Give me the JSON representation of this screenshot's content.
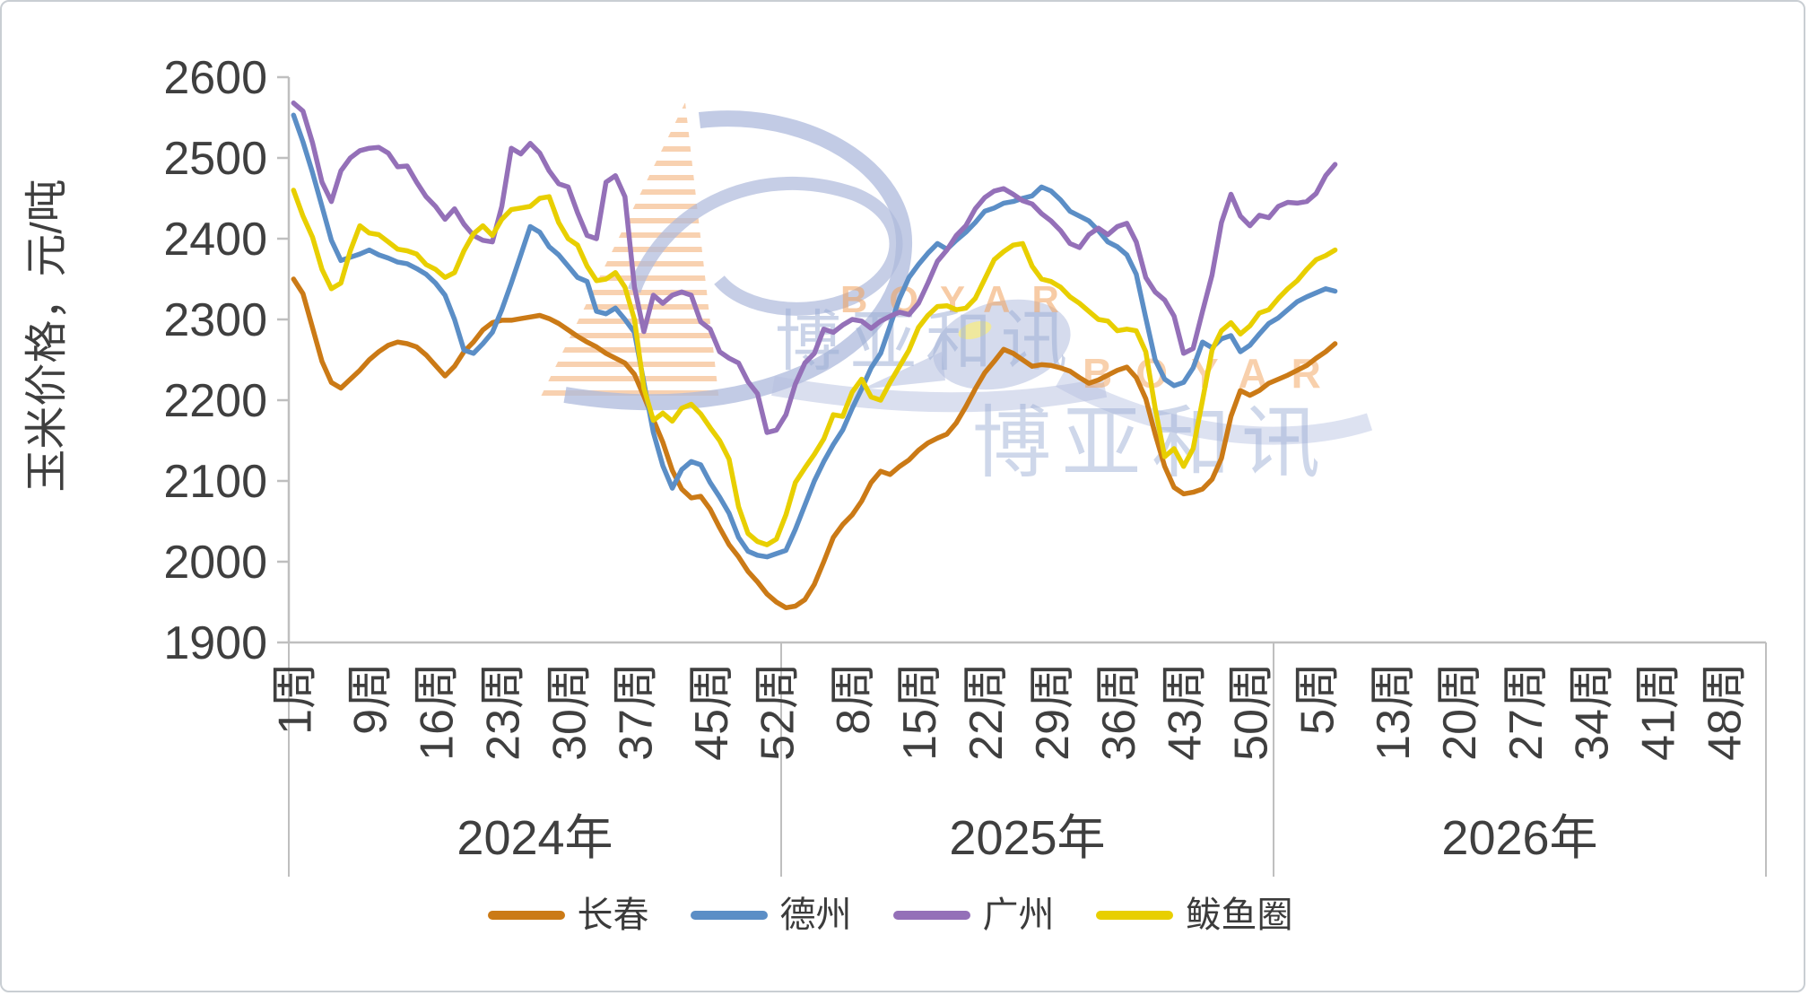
{
  "watermark": {
    "cn": "博亚和讯",
    "en": "BOYAR"
  },
  "chart_data": {
    "type": "line",
    "title": "",
    "ylabel": "玉米价格，元/吨",
    "xlabel": "",
    "ylim": [
      1900,
      2600
    ],
    "yticks": [
      2600,
      2500,
      2400,
      2300,
      2200,
      2100,
      2000,
      1900
    ],
    "grid": "off",
    "legend_position": "bottom",
    "week_suffix": "周",
    "year_groups": [
      {
        "label": "2024年",
        "weeks": 52,
        "tick_weeks": [
          1,
          9,
          16,
          23,
          30,
          37,
          45,
          52
        ]
      },
      {
        "label": "2025年",
        "weeks": 52,
        "tick_weeks": [
          8,
          15,
          22,
          29,
          36,
          43,
          50
        ]
      },
      {
        "label": "2026年",
        "weeks": 52,
        "tick_weeks": [
          5,
          13,
          20,
          27,
          34,
          41,
          48
        ]
      }
    ],
    "series": [
      {
        "name": "长春",
        "color": "#CB7A16",
        "values": [
          2350,
          2332,
          2290,
          2248,
          2222,
          2215,
          2226,
          2237,
          2250,
          2260,
          2268,
          2272,
          2270,
          2266,
          2256,
          2243,
          2230,
          2242,
          2260,
          2272,
          2287,
          2296,
          2299,
          2299,
          2301,
          2303,
          2305,
          2301,
          2295,
          2287,
          2279,
          2272,
          2266,
          2258,
          2252,
          2246,
          2232,
          2205,
          2176,
          2148,
          2113,
          2090,
          2079,
          2081,
          2065,
          2042,
          2021,
          2006,
          1988,
          1975,
          1960,
          1950,
          1943,
          1945,
          1953,
          1972,
          2000,
          2030,
          2046,
          2058,
          2075,
          2098,
          2112,
          2108,
          2118,
          2126,
          2138,
          2147,
          2153,
          2158,
          2172,
          2192,
          2214,
          2234,
          2248,
          2263,
          2258,
          2250,
          2242,
          2244,
          2243,
          2240,
          2236,
          2228,
          2221,
          2225,
          2231,
          2237,
          2241,
          2228,
          2202,
          2158,
          2118,
          2092,
          2084,
          2086,
          2090,
          2102,
          2128,
          2180,
          2212,
          2206,
          2212,
          2221,
          2226,
          2231,
          2237,
          2243,
          2252,
          2260,
          2270
        ]
      },
      {
        "name": "德州",
        "color": "#5B8EC6",
        "values": [
          2553,
          2520,
          2482,
          2440,
          2398,
          2373,
          2377,
          2381,
          2386,
          2380,
          2376,
          2371,
          2369,
          2363,
          2356,
          2345,
          2330,
          2300,
          2262,
          2258,
          2270,
          2284,
          2312,
          2345,
          2380,
          2415,
          2408,
          2390,
          2380,
          2366,
          2352,
          2347,
          2310,
          2307,
          2314,
          2300,
          2284,
          2222,
          2160,
          2119,
          2091,
          2114,
          2124,
          2120,
          2098,
          2080,
          2060,
          2030,
          2013,
          2008,
          2006,
          2010,
          2014,
          2040,
          2070,
          2100,
          2124,
          2145,
          2163,
          2190,
          2214,
          2240,
          2258,
          2292,
          2326,
          2352,
          2368,
          2382,
          2394,
          2387,
          2398,
          2408,
          2420,
          2434,
          2438,
          2444,
          2446,
          2450,
          2453,
          2464,
          2459,
          2448,
          2434,
          2428,
          2422,
          2410,
          2396,
          2390,
          2380,
          2356,
          2302,
          2250,
          2226,
          2218,
          2222,
          2240,
          2272,
          2265,
          2276,
          2280,
          2260,
          2268,
          2282,
          2295,
          2302,
          2312,
          2322,
          2328,
          2333,
          2338,
          2335
        ]
      },
      {
        "name": "广州",
        "color": "#9470B8",
        "values": [
          2568,
          2558,
          2519,
          2470,
          2446,
          2484,
          2500,
          2509,
          2512,
          2513,
          2506,
          2489,
          2490,
          2470,
          2452,
          2440,
          2424,
          2437,
          2418,
          2404,
          2398,
          2396,
          2440,
          2512,
          2505,
          2518,
          2506,
          2484,
          2468,
          2464,
          2432,
          2404,
          2400,
          2470,
          2478,
          2452,
          2340,
          2285,
          2330,
          2320,
          2330,
          2334,
          2330,
          2297,
          2288,
          2260,
          2252,
          2246,
          2223,
          2208,
          2160,
          2163,
          2182,
          2220,
          2246,
          2258,
          2288,
          2284,
          2293,
          2300,
          2298,
          2289,
          2298,
          2304,
          2309,
          2306,
          2320,
          2345,
          2372,
          2386,
          2404,
          2416,
          2437,
          2451,
          2459,
          2462,
          2455,
          2447,
          2443,
          2431,
          2422,
          2410,
          2394,
          2389,
          2405,
          2413,
          2405,
          2415,
          2419,
          2396,
          2352,
          2334,
          2324,
          2304,
          2258,
          2264,
          2310,
          2355,
          2420,
          2455,
          2428,
          2416,
          2429,
          2426,
          2440,
          2445,
          2444,
          2446,
          2456,
          2478,
          2492
        ]
      },
      {
        "name": "鲅鱼圈",
        "color": "#E8CF00",
        "values": [
          2460,
          2428,
          2402,
          2362,
          2338,
          2345,
          2385,
          2416,
          2407,
          2405,
          2396,
          2387,
          2385,
          2381,
          2368,
          2362,
          2352,
          2358,
          2385,
          2406,
          2416,
          2404,
          2424,
          2436,
          2438,
          2440,
          2450,
          2452,
          2420,
          2400,
          2392,
          2366,
          2348,
          2350,
          2358,
          2340,
          2300,
          2215,
          2175,
          2184,
          2174,
          2190,
          2195,
          2183,
          2166,
          2150,
          2127,
          2068,
          2035,
          2025,
          2021,
          2028,
          2058,
          2098,
          2116,
          2133,
          2152,
          2182,
          2180,
          2210,
          2226,
          2204,
          2200,
          2222,
          2242,
          2262,
          2290,
          2305,
          2316,
          2317,
          2312,
          2314,
          2326,
          2350,
          2374,
          2384,
          2392,
          2394,
          2366,
          2350,
          2347,
          2340,
          2328,
          2320,
          2310,
          2300,
          2298,
          2286,
          2288,
          2286,
          2260,
          2190,
          2130,
          2140,
          2118,
          2140,
          2200,
          2262,
          2286,
          2296,
          2282,
          2292,
          2308,
          2312,
          2326,
          2338,
          2348,
          2362,
          2374,
          2379,
          2386
        ]
      }
    ]
  }
}
